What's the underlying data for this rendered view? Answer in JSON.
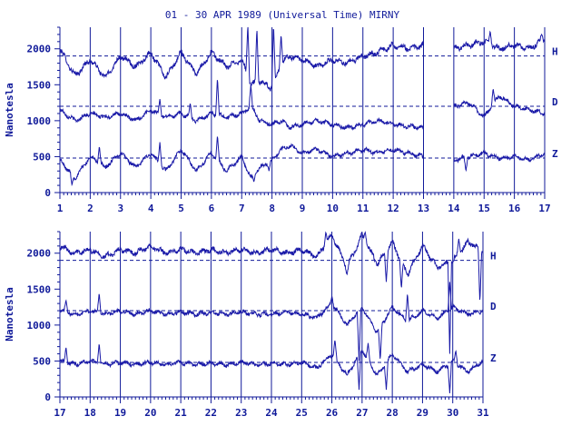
{
  "title": "01 - 30 APR 1989 (Universal Time) MIRNY",
  "colors": {
    "ink": "#101a9a",
    "trace": "#1a1aa8",
    "background": "#ffffff"
  },
  "chart_data": [
    {
      "type": "line",
      "ylabel": "Nanotesla",
      "xlabel": "",
      "xlim": [
        1,
        17
      ],
      "ylim": [
        0,
        2300
      ],
      "x_ticks": [
        1,
        2,
        3,
        4,
        5,
        6,
        7,
        8,
        9,
        10,
        11,
        12,
        13,
        14,
        15,
        16,
        17
      ],
      "y_ticks": [
        0,
        500,
        1000,
        1500,
        2000
      ],
      "day_lines": [
        2,
        3,
        4,
        5,
        6,
        7,
        8,
        9,
        10,
        11,
        12,
        13,
        14,
        15,
        16,
        17
      ],
      "data_gaps": [
        [
          13.0,
          14.0
        ]
      ],
      "series": [
        {
          "name": "H",
          "baseline": 1900,
          "x": [
            1.0,
            1.5,
            2.0,
            2.5,
            3.0,
            3.5,
            4.0,
            4.5,
            5.0,
            5.5,
            6.0,
            6.5,
            7.0,
            7.3,
            7.6,
            8.0,
            8.3,
            8.6,
            9.0,
            9.5,
            10.0,
            10.5,
            11.0,
            11.5,
            12.0,
            12.5,
            13.0,
            14.0,
            14.5,
            15.0,
            15.5,
            16.0,
            16.5,
            17.0
          ],
          "values": [
            2000,
            1620,
            1850,
            1600,
            1900,
            1750,
            1950,
            1600,
            1950,
            1650,
            1950,
            1750,
            1850,
            1500,
            1550,
            1450,
            1800,
            1900,
            1850,
            1750,
            1850,
            1800,
            1900,
            1950,
            2050,
            2000,
            2050,
            2000,
            2050,
            2100,
            2000,
            2050,
            2000,
            2150
          ],
          "spikes": [
            [
              7.2,
              2350
            ],
            [
              7.5,
              2300
            ],
            [
              8.05,
              2350
            ],
            [
              8.3,
              2200
            ],
            [
              15.2,
              2250
            ],
            [
              16.9,
              2200
            ]
          ]
        },
        {
          "name": "D",
          "baseline": 1200,
          "x": [
            1.0,
            1.5,
            2.0,
            2.5,
            3.0,
            3.5,
            4.0,
            4.5,
            5.0,
            5.5,
            6.0,
            6.5,
            7.0,
            7.3,
            7.6,
            8.0,
            8.3,
            8.6,
            9.0,
            9.5,
            10.0,
            10.5,
            11.0,
            11.5,
            12.0,
            12.5,
            13.0,
            14.0,
            14.5,
            15.0,
            15.5,
            16.0,
            16.5,
            17.0
          ],
          "values": [
            1150,
            1000,
            1100,
            1050,
            1100,
            1000,
            1150,
            1050,
            1100,
            1000,
            1100,
            1050,
            1100,
            1200,
            1000,
            950,
            1000,
            900,
            950,
            1000,
            950,
            900,
            950,
            1000,
            950,
            920,
            900,
            1200,
            1250,
            1050,
            1350,
            1200,
            1150,
            1100
          ],
          "spikes": [
            [
              4.3,
              1300
            ],
            [
              5.3,
              1250
            ],
            [
              6.2,
              1600
            ],
            [
              7.3,
              1500
            ],
            [
              15.3,
              1450
            ]
          ]
        },
        {
          "name": "Z",
          "baseline": 480,
          "x": [
            1.0,
            1.5,
            2.0,
            2.5,
            3.0,
            3.5,
            4.0,
            4.5,
            5.0,
            5.5,
            6.0,
            6.5,
            7.0,
            7.3,
            7.6,
            8.0,
            8.3,
            8.6,
            9.0,
            9.5,
            10.0,
            10.5,
            11.0,
            11.5,
            12.0,
            12.5,
            13.0,
            14.0,
            14.5,
            15.0,
            15.5,
            16.0,
            16.5,
            17.0
          ],
          "values": [
            450,
            200,
            500,
            350,
            550,
            350,
            550,
            300,
            600,
            300,
            550,
            300,
            500,
            200,
            350,
            450,
            600,
            650,
            550,
            600,
            500,
            550,
            600,
            550,
            600,
            550,
            500,
            450,
            500,
            550,
            480,
            500,
            450,
            550
          ],
          "spikes": [
            [
              1.4,
              100
            ],
            [
              2.3,
              650
            ],
            [
              4.3,
              700
            ],
            [
              6.2,
              800
            ],
            [
              7.4,
              150
            ],
            [
              7.9,
              300
            ],
            [
              14.4,
              300
            ]
          ]
        }
      ]
    },
    {
      "type": "line",
      "ylabel": "Nanotesla",
      "xlabel": "",
      "xlim": [
        17,
        31
      ],
      "ylim": [
        0,
        2300
      ],
      "x_ticks": [
        17,
        18,
        19,
        20,
        21,
        22,
        23,
        24,
        25,
        26,
        27,
        28,
        29,
        30,
        31
      ],
      "y_ticks": [
        0,
        500,
        1000,
        1500,
        2000
      ],
      "day_lines": [
        18,
        19,
        20,
        21,
        22,
        23,
        24,
        25,
        26,
        27,
        28,
        29,
        30,
        31
      ],
      "data_gaps": [],
      "series": [
        {
          "name": "H",
          "baseline": 1900,
          "x": [
            17,
            17.5,
            18,
            18.5,
            19,
            19.5,
            20,
            20.5,
            21,
            21.5,
            22,
            22.5,
            23,
            23.5,
            24,
            24.5,
            25,
            25.5,
            26,
            26.5,
            27,
            27.5,
            28,
            28.5,
            29,
            29.5,
            30,
            30.5,
            31
          ],
          "values": [
            2100,
            2000,
            2050,
            1950,
            2050,
            2000,
            2100,
            2000,
            2050,
            2000,
            2050,
            2000,
            2050,
            2000,
            2050,
            2000,
            2050,
            1950,
            2250,
            1800,
            2250,
            1850,
            2150,
            1700,
            2100,
            1800,
            1900,
            2150,
            2050
          ],
          "spikes": [
            [
              25.8,
              2300
            ],
            [
              26.5,
              1700
            ],
            [
              27.1,
              2300
            ],
            [
              27.8,
              1600
            ],
            [
              28.3,
              1500
            ],
            [
              29.9,
              600
            ],
            [
              30.2,
              2200
            ],
            [
              30.9,
              1300
            ]
          ]
        },
        {
          "name": "D",
          "baseline": 1200,
          "x": [
            17,
            17.5,
            18,
            18.5,
            19,
            19.5,
            20,
            20.5,
            21,
            21.5,
            22,
            22.5,
            23,
            23.5,
            24,
            24.5,
            25,
            25.5,
            26,
            26.5,
            27,
            27.5,
            28,
            28.5,
            29,
            29.5,
            30,
            30.5,
            31
          ],
          "values": [
            1200,
            1150,
            1200,
            1150,
            1200,
            1150,
            1200,
            1150,
            1180,
            1150,
            1170,
            1150,
            1180,
            1150,
            1150,
            1180,
            1150,
            1100,
            1300,
            1000,
            1250,
            900,
            1250,
            1050,
            1200,
            1100,
            1250,
            1150,
            1200
          ],
          "spikes": [
            [
              17.2,
              1350
            ],
            [
              18.3,
              1450
            ],
            [
              26.0,
              1400
            ],
            [
              26.9,
              500
            ],
            [
              27.6,
              500
            ],
            [
              28.5,
              1450
            ],
            [
              29.9,
              1600
            ]
          ]
        },
        {
          "name": "Z",
          "baseline": 480,
          "x": [
            17,
            17.5,
            18,
            18.5,
            19,
            19.5,
            20,
            20.5,
            21,
            21.5,
            22,
            22.5,
            23,
            23.5,
            24,
            24.5,
            25,
            25.5,
            26,
            26.5,
            27,
            27.5,
            28,
            28.5,
            29,
            29.5,
            30,
            30.5,
            31
          ],
          "values": [
            500,
            450,
            500,
            450,
            480,
            450,
            480,
            450,
            480,
            450,
            470,
            450,
            480,
            450,
            460,
            450,
            480,
            400,
            600,
            300,
            650,
            300,
            600,
            350,
            450,
            350,
            500,
            350,
            500
          ],
          "spikes": [
            [
              17.2,
              700
            ],
            [
              18.3,
              750
            ],
            [
              26.1,
              800
            ],
            [
              26.9,
              100
            ],
            [
              27.2,
              750
            ],
            [
              27.8,
              100
            ],
            [
              29.9,
              50
            ],
            [
              30.1,
              650
            ]
          ]
        }
      ]
    }
  ]
}
